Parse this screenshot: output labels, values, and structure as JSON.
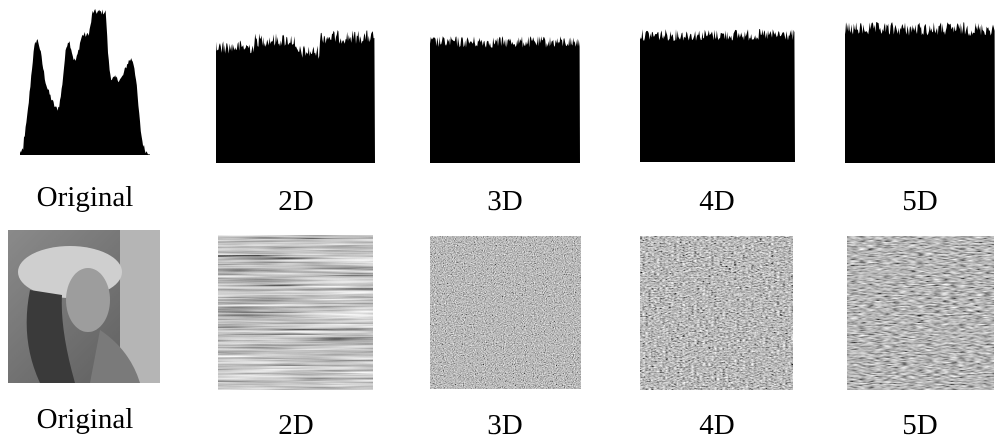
{
  "rows": [
    {
      "labels": [
        "Original",
        "2D",
        "3D",
        "4D",
        "5D"
      ]
    },
    {
      "labels": [
        "Original",
        "2D",
        "3D",
        "4D",
        "5D"
      ]
    }
  ]
}
